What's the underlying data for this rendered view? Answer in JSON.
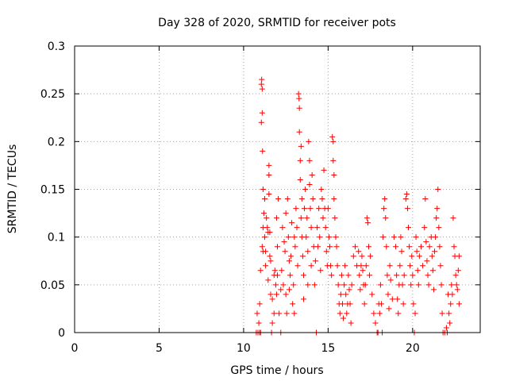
{
  "chart_data": {
    "type": "scatter",
    "title": "Day 328 of 2020, SRMTID for receiver pots",
    "xlabel": "GPS time / hours",
    "ylabel": "SRMTID / TECUs",
    "xlim": [
      0,
      24
    ],
    "ylim": [
      0,
      0.3
    ],
    "xticks": [
      0,
      5,
      10,
      15,
      20
    ],
    "xtick_labels": [
      "0",
      "5",
      "10",
      "15",
      "20"
    ],
    "yticks": [
      0,
      0.05,
      0.1,
      0.15,
      0.2,
      0.25,
      0.3
    ],
    "ytick_labels": [
      "0",
      "0.05",
      "0.1",
      "0.15",
      "0.2",
      "0.25",
      "0.3"
    ],
    "grid": true,
    "marker": "plus",
    "color": "#ff0000",
    "series": [
      {
        "values": [
          [
            10.75,
            0.0
          ],
          [
            10.8,
            0.02
          ],
          [
            10.85,
            0.0
          ],
          [
            10.9,
            0.01
          ],
          [
            10.95,
            0.0
          ],
          [
            10.95,
            0.03
          ],
          [
            11.0,
            0.065
          ],
          [
            11.0,
            0.0
          ],
          [
            11.05,
            0.26
          ],
          [
            11.07,
            0.265
          ],
          [
            11.05,
            0.22
          ],
          [
            11.1,
            0.255
          ],
          [
            11.1,
            0.23
          ],
          [
            11.12,
            0.19
          ],
          [
            11.15,
            0.15
          ],
          [
            11.15,
            0.11
          ],
          [
            11.1,
            0.09
          ],
          [
            11.15,
            0.085
          ],
          [
            11.2,
            0.125
          ],
          [
            11.25,
            0.14
          ],
          [
            11.25,
            0.1
          ],
          [
            11.3,
            0.085
          ],
          [
            11.3,
            0.07
          ],
          [
            11.35,
            0.12
          ],
          [
            11.4,
            0.11
          ],
          [
            11.45,
            0.105
          ],
          [
            11.5,
            0.175
          ],
          [
            11.5,
            0.165
          ],
          [
            11.5,
            0.145
          ],
          [
            11.55,
            0.105
          ],
          [
            11.55,
            0.08
          ],
          [
            11.6,
            0.075
          ],
          [
            11.45,
            0.055
          ],
          [
            11.6,
            0.04
          ],
          [
            11.7,
            0.035
          ],
          [
            11.7,
            0.01
          ],
          [
            11.65,
            0.0
          ],
          [
            11.8,
            0.06
          ],
          [
            11.8,
            0.02
          ],
          [
            11.85,
            0.065
          ],
          [
            11.9,
            0.05
          ],
          [
            11.95,
            0.04
          ],
          [
            11.95,
            0.12
          ],
          [
            12.0,
            0.09
          ],
          [
            12.0,
            0.06
          ],
          [
            12.05,
            0.14
          ],
          [
            12.1,
            0.02
          ],
          [
            12.2,
            0.0
          ],
          [
            12.2,
            0.045
          ],
          [
            12.25,
            0.065
          ],
          [
            12.3,
            0.11
          ],
          [
            12.35,
            0.05
          ],
          [
            12.4,
            0.095
          ],
          [
            12.45,
            0.085
          ],
          [
            12.5,
            0.125
          ],
          [
            12.5,
            0.04
          ],
          [
            12.55,
            0.02
          ],
          [
            12.6,
            0.14
          ],
          [
            12.65,
            0.1
          ],
          [
            12.7,
            0.075
          ],
          [
            12.7,
            0.045
          ],
          [
            12.75,
            0.06
          ],
          [
            12.8,
            0.08
          ],
          [
            12.85,
            0.115
          ],
          [
            12.9,
            0.03
          ],
          [
            12.95,
            0.05
          ],
          [
            13.0,
            0.02
          ],
          [
            13.0,
            0.1
          ],
          [
            13.05,
            0.09
          ],
          [
            13.1,
            0.13
          ],
          [
            13.15,
            0.11
          ],
          [
            13.2,
            0.07
          ],
          [
            13.25,
            0.25
          ],
          [
            13.28,
            0.245
          ],
          [
            13.3,
            0.235
          ],
          [
            13.3,
            0.21
          ],
          [
            13.35,
            0.18
          ],
          [
            13.35,
            0.16
          ],
          [
            13.4,
            0.195
          ],
          [
            13.4,
            0.12
          ],
          [
            13.45,
            0.14
          ],
          [
            13.45,
            0.1
          ],
          [
            13.5,
            0.08
          ],
          [
            13.55,
            0.06
          ],
          [
            13.55,
            0.035
          ],
          [
            13.6,
            0.13
          ],
          [
            13.65,
            0.15
          ],
          [
            13.7,
            0.1
          ],
          [
            13.75,
            0.12
          ],
          [
            13.8,
            0.085
          ],
          [
            13.8,
            0.05
          ],
          [
            13.85,
            0.2
          ],
          [
            13.9,
            0.18
          ],
          [
            13.9,
            0.155
          ],
          [
            13.95,
            0.13
          ],
          [
            14.0,
            0.11
          ],
          [
            14.0,
            0.07
          ],
          [
            14.05,
            0.165
          ],
          [
            14.1,
            0.14
          ],
          [
            14.15,
            0.09
          ],
          [
            14.2,
            0.05
          ],
          [
            14.25,
            0.075
          ],
          [
            14.3,
            0.0
          ],
          [
            14.35,
            0.11
          ],
          [
            14.4,
            0.09
          ],
          [
            14.45,
            0.13
          ],
          [
            14.5,
            0.1
          ],
          [
            14.55,
            0.065
          ],
          [
            14.6,
            0.15
          ],
          [
            14.65,
            0.14
          ],
          [
            14.7,
            0.12
          ],
          [
            14.75,
            0.17
          ],
          [
            14.8,
            0.13
          ],
          [
            14.85,
            0.11
          ],
          [
            14.9,
            0.085
          ],
          [
            14.95,
            0.07
          ],
          [
            15.0,
            0.13
          ],
          [
            15.05,
            0.1
          ],
          [
            15.1,
            0.09
          ],
          [
            15.15,
            0.07
          ],
          [
            15.2,
            0.06
          ],
          [
            15.25,
            0.205
          ],
          [
            15.3,
            0.2
          ],
          [
            15.3,
            0.18
          ],
          [
            15.35,
            0.165
          ],
          [
            15.35,
            0.14
          ],
          [
            15.4,
            0.12
          ],
          [
            15.45,
            0.1
          ],
          [
            15.5,
            0.09
          ],
          [
            15.55,
            0.07
          ],
          [
            15.6,
            0.05
          ],
          [
            15.65,
            0.03
          ],
          [
            15.7,
            0.02
          ],
          [
            15.75,
            0.04
          ],
          [
            15.8,
            0.06
          ],
          [
            15.85,
            0.03
          ],
          [
            15.9,
            0.015
          ],
          [
            15.95,
            0.05
          ],
          [
            16.0,
            0.07
          ],
          [
            16.05,
            0.04
          ],
          [
            16.1,
            0.02
          ],
          [
            16.15,
            0.03
          ],
          [
            16.2,
            0.06
          ],
          [
            16.25,
            0.045
          ],
          [
            16.3,
            0.03
          ],
          [
            16.35,
            0.01
          ],
          [
            16.4,
            0.05
          ],
          [
            16.5,
            0.08
          ],
          [
            16.6,
            0.09
          ],
          [
            16.7,
            0.07
          ],
          [
            16.8,
            0.085
          ],
          [
            16.85,
            0.06
          ],
          [
            16.9,
            0.045
          ],
          [
            16.95,
            0.07
          ],
          [
            17.0,
            0.08
          ],
          [
            17.05,
            0.065
          ],
          [
            17.1,
            0.05
          ],
          [
            17.15,
            0.03
          ],
          [
            17.2,
            0.05
          ],
          [
            17.25,
            0.07
          ],
          [
            17.3,
            0.12
          ],
          [
            17.35,
            0.115
          ],
          [
            17.4,
            0.09
          ],
          [
            17.45,
            0.06
          ],
          [
            17.5,
            0.08
          ],
          [
            17.6,
            0.04
          ],
          [
            17.7,
            0.02
          ],
          [
            17.8,
            0.01
          ],
          [
            17.9,
            0.0
          ],
          [
            17.95,
            0.0
          ],
          [
            18.0,
            0.03
          ],
          [
            18.05,
            0.02
          ],
          [
            18.1,
            0.05
          ],
          [
            18.15,
            0.03
          ],
          [
            18.2,
            0.0
          ],
          [
            18.25,
            0.1
          ],
          [
            18.3,
            0.13
          ],
          [
            18.35,
            0.14
          ],
          [
            18.4,
            0.12
          ],
          [
            18.45,
            0.09
          ],
          [
            18.5,
            0.06
          ],
          [
            18.55,
            0.04
          ],
          [
            18.6,
            0.025
          ],
          [
            18.65,
            0.07
          ],
          [
            18.7,
            0.055
          ],
          [
            18.8,
            0.035
          ],
          [
            18.9,
            0.1
          ],
          [
            19.0,
            0.09
          ],
          [
            19.05,
            0.06
          ],
          [
            19.1,
            0.035
          ],
          [
            19.15,
            0.02
          ],
          [
            19.2,
            0.05
          ],
          [
            19.25,
            0.07
          ],
          [
            19.3,
            0.1
          ],
          [
            19.35,
            0.085
          ],
          [
            19.4,
            0.05
          ],
          [
            19.45,
            0.03
          ],
          [
            19.5,
            0.06
          ],
          [
            19.6,
            0.14
          ],
          [
            19.65,
            0.145
          ],
          [
            19.7,
            0.13
          ],
          [
            19.75,
            0.11
          ],
          [
            19.8,
            0.09
          ],
          [
            19.85,
            0.07
          ],
          [
            19.9,
            0.05
          ],
          [
            19.95,
            0.08
          ],
          [
            20.0,
            0.06
          ],
          [
            20.05,
            0.03
          ],
          [
            20.1,
            0.0
          ],
          [
            20.15,
            0.02
          ],
          [
            20.2,
            0.1
          ],
          [
            20.25,
            0.085
          ],
          [
            20.3,
            0.065
          ],
          [
            20.35,
            0.05
          ],
          [
            20.4,
            0.08
          ],
          [
            20.5,
            0.09
          ],
          [
            20.6,
            0.07
          ],
          [
            20.7,
            0.11
          ],
          [
            20.75,
            0.14
          ],
          [
            20.8,
            0.095
          ],
          [
            20.85,
            0.075
          ],
          [
            20.9,
            0.06
          ],
          [
            20.95,
            0.05
          ],
          [
            21.0,
            0.09
          ],
          [
            21.1,
            0.1
          ],
          [
            21.15,
            0.08
          ],
          [
            21.2,
            0.065
          ],
          [
            21.25,
            0.045
          ],
          [
            21.3,
            0.085
          ],
          [
            21.35,
            0.1
          ],
          [
            21.4,
            0.12
          ],
          [
            21.45,
            0.13
          ],
          [
            21.5,
            0.15
          ],
          [
            21.55,
            0.11
          ],
          [
            21.6,
            0.09
          ],
          [
            21.65,
            0.07
          ],
          [
            21.7,
            0.05
          ],
          [
            21.75,
            0.02
          ],
          [
            21.8,
            0.0
          ],
          [
            21.9,
            0.0
          ],
          [
            22.0,
            0.005
          ],
          [
            22.05,
            0.0
          ],
          [
            22.1,
            0.04
          ],
          [
            22.15,
            0.02
          ],
          [
            22.2,
            0.01
          ],
          [
            22.25,
            0.03
          ],
          [
            22.3,
            0.05
          ],
          [
            22.35,
            0.04
          ],
          [
            22.4,
            0.12
          ],
          [
            22.45,
            0.09
          ],
          [
            22.5,
            0.08
          ],
          [
            22.55,
            0.06
          ],
          [
            22.6,
            0.05
          ],
          [
            22.65,
            0.045
          ],
          [
            22.7,
            0.065
          ],
          [
            22.75,
            0.08
          ],
          [
            22.75,
            0.03
          ]
        ]
      }
    ]
  }
}
